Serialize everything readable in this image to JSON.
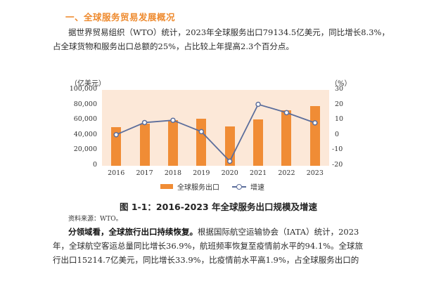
{
  "section": {
    "heading": "一、全球服务贸易发展概况"
  },
  "paragraph1": {
    "line1": "据世界贸易组织（WTO）统计，2023年全球服务出口79134.5亿美元，同比增长8.3%，",
    "line2": "占全球货物和服务出口总额的25%，占比较上年提高2.3个百分点。"
  },
  "chart_data": {
    "type": "bar",
    "title": "图 1-1：2016-2023 年全球服务出口规模及增速",
    "categories": [
      "2016",
      "2017",
      "2018",
      "2019",
      "2020",
      "2021",
      "2022",
      "2023"
    ],
    "series": [
      {
        "name": "全球服务出口",
        "type": "bar",
        "axis": "left",
        "color": "#f08c35",
        "values": [
          50700,
          55800,
          60500,
          62500,
          51500,
          61000,
          73000,
          79134.5
        ]
      },
      {
        "name": "增速",
        "type": "line",
        "axis": "right",
        "color": "#5c6e9c",
        "values": [
          0.5,
          8.5,
          10.0,
          2.5,
          -17.0,
          20.5,
          15.0,
          8.3
        ]
      }
    ],
    "ylabel": "（亿美元）",
    "y2label": "（%）",
    "ylim": [
      0,
      100000
    ],
    "y2lim": [
      -20,
      30
    ],
    "yticks": [
      "100,000",
      "80,000",
      "60,000",
      "40,000",
      "20,000",
      "0"
    ],
    "y2ticks": [
      "30",
      "20",
      "10",
      "0",
      "-10",
      "-20"
    ],
    "legend_position": "bottom",
    "plot_background": "#fce8d8"
  },
  "legend": {
    "bar_label": "全球服务出口",
    "line_label": "增速"
  },
  "source": "资料来源：WTO。",
  "paragraph2": {
    "bold_lead": "分领域看，全球旅行出口持续恢复。",
    "line1_rest": "根据国际航空运输协会（IATA）统计，2023",
    "line2": "年，全球航空客运总量同比增长36.9%，航班频率恢复至疫情前水平的94.1%。全球旅",
    "line3": "行出口15214.7亿美元，同比增长33.9%，比疫情前水平高1.9%，占全球服务出口的"
  }
}
